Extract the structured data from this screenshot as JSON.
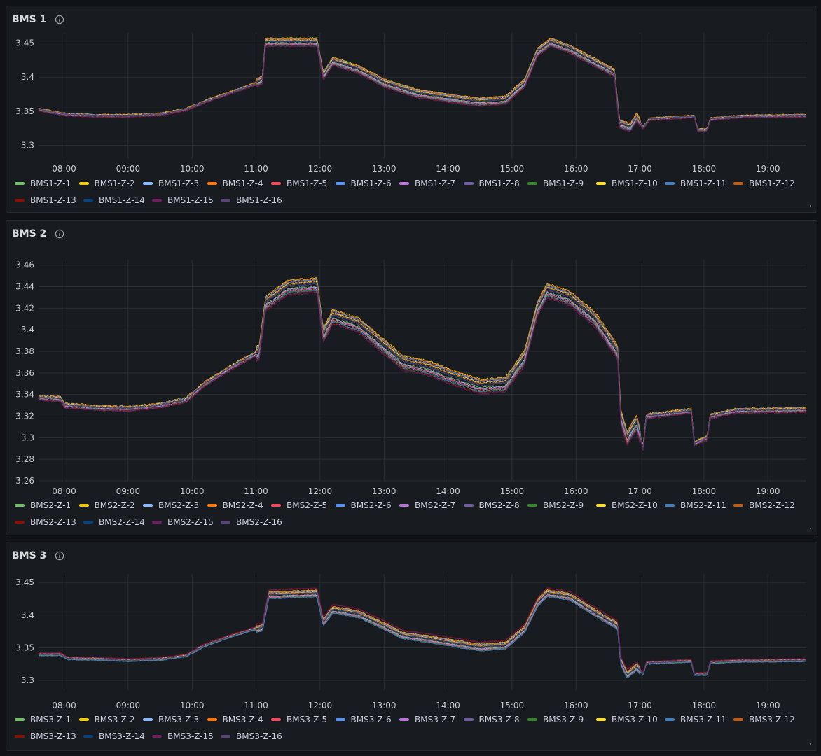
{
  "panels": [
    {
      "title": "BMS 1",
      "chart_data": {
        "type": "line",
        "x_ticks": [
          "08:00",
          "09:00",
          "10:00",
          "11:00",
          "12:00",
          "13:00",
          "14:00",
          "15:00",
          "16:00",
          "17:00",
          "18:00",
          "19:00"
        ],
        "y_ticks": [
          "3.3",
          "3.35",
          "3.4",
          "3.45"
        ],
        "ylim": [
          3.28,
          3.465
        ],
        "xlim_hours": [
          7.6,
          19.6
        ],
        "grid": true,
        "legend": "bottom",
        "base_curve": [
          [
            7.6,
            3.352
          ],
          [
            8.0,
            3.345
          ],
          [
            8.5,
            3.343
          ],
          [
            9.0,
            3.343
          ],
          [
            9.5,
            3.345
          ],
          [
            9.9,
            3.352
          ],
          [
            10.3,
            3.367
          ],
          [
            10.7,
            3.38
          ],
          [
            11.0,
            3.39
          ],
          [
            11.1,
            3.395
          ],
          [
            11.15,
            3.45
          ],
          [
            11.95,
            3.45
          ],
          [
            12.05,
            3.4
          ],
          [
            12.2,
            3.422
          ],
          [
            12.6,
            3.41
          ],
          [
            13.0,
            3.39
          ],
          [
            13.5,
            3.375
          ],
          [
            14.0,
            3.368
          ],
          [
            14.5,
            3.362
          ],
          [
            14.9,
            3.365
          ],
          [
            15.2,
            3.39
          ],
          [
            15.4,
            3.435
          ],
          [
            15.6,
            3.45
          ],
          [
            15.9,
            3.44
          ],
          [
            16.3,
            3.42
          ],
          [
            16.6,
            3.405
          ],
          [
            16.68,
            3.33
          ],
          [
            16.85,
            3.325
          ],
          [
            16.95,
            3.34
          ],
          [
            17.05,
            3.325
          ],
          [
            17.15,
            3.338
          ],
          [
            17.85,
            3.342
          ],
          [
            17.9,
            3.322
          ],
          [
            18.05,
            3.322
          ],
          [
            18.1,
            3.338
          ],
          [
            18.6,
            3.342
          ],
          [
            19.6,
            3.343
          ]
        ],
        "series": [
          {
            "name": "BMS1-Z-1",
            "color": "#73bf69"
          },
          {
            "name": "BMS1-Z-2",
            "color": "#f2cc0c"
          },
          {
            "name": "BMS1-Z-3",
            "color": "#8ab8ff"
          },
          {
            "name": "BMS1-Z-4",
            "color": "#ff780a"
          },
          {
            "name": "BMS1-Z-5",
            "color": "#f2495c"
          },
          {
            "name": "BMS1-Z-6",
            "color": "#5794f2"
          },
          {
            "name": "BMS1-Z-7",
            "color": "#b877d9"
          },
          {
            "name": "BMS1-Z-8",
            "color": "#705da0"
          },
          {
            "name": "BMS1-Z-9",
            "color": "#37872d"
          },
          {
            "name": "BMS1-Z-10",
            "color": "#fade2a"
          },
          {
            "name": "BMS1-Z-11",
            "color": "#447ebc"
          },
          {
            "name": "BMS1-Z-12",
            "color": "#c15c17"
          },
          {
            "name": "BMS1-Z-13",
            "color": "#890f02"
          },
          {
            "name": "BMS1-Z-14",
            "color": "#0a437c"
          },
          {
            "name": "BMS1-Z-15",
            "color": "#6d1f62"
          },
          {
            "name": "BMS1-Z-16",
            "color": "#584477"
          }
        ]
      }
    },
    {
      "title": "BMS 2",
      "chart_data": {
        "type": "line",
        "x_ticks": [
          "08:00",
          "09:00",
          "10:00",
          "11:00",
          "12:00",
          "13:00",
          "14:00",
          "15:00",
          "16:00",
          "17:00",
          "18:00",
          "19:00"
        ],
        "y_ticks": [
          "3.26",
          "3.28",
          "3.3",
          "3.32",
          "3.34",
          "3.36",
          "3.38",
          "3.4",
          "3.42",
          "3.44",
          "3.46"
        ],
        "ylim": [
          3.26,
          3.465
        ],
        "xlim_hours": [
          7.6,
          19.6
        ],
        "grid": true,
        "legend": "bottom",
        "base_curve": [
          [
            7.6,
            3.337
          ],
          [
            7.95,
            3.336
          ],
          [
            8.0,
            3.33
          ],
          [
            8.5,
            3.328
          ],
          [
            9.0,
            3.327
          ],
          [
            9.5,
            3.33
          ],
          [
            9.9,
            3.335
          ],
          [
            10.2,
            3.35
          ],
          [
            10.6,
            3.365
          ],
          [
            11.0,
            3.378
          ],
          [
            11.05,
            3.38
          ],
          [
            11.15,
            3.425
          ],
          [
            11.5,
            3.44
          ],
          [
            11.95,
            3.442
          ],
          [
            12.05,
            3.395
          ],
          [
            12.2,
            3.413
          ],
          [
            12.6,
            3.405
          ],
          [
            13.0,
            3.385
          ],
          [
            13.3,
            3.37
          ],
          [
            13.7,
            3.365
          ],
          [
            14.0,
            3.358
          ],
          [
            14.5,
            3.348
          ],
          [
            14.9,
            3.35
          ],
          [
            15.2,
            3.375
          ],
          [
            15.4,
            3.42
          ],
          [
            15.55,
            3.437
          ],
          [
            15.9,
            3.43
          ],
          [
            16.3,
            3.41
          ],
          [
            16.65,
            3.38
          ],
          [
            16.7,
            3.32
          ],
          [
            16.8,
            3.3
          ],
          [
            16.95,
            3.315
          ],
          [
            17.05,
            3.29
          ],
          [
            17.1,
            3.32
          ],
          [
            17.8,
            3.325
          ],
          [
            17.85,
            3.295
          ],
          [
            18.05,
            3.3
          ],
          [
            18.1,
            3.32
          ],
          [
            18.5,
            3.325
          ],
          [
            19.6,
            3.326
          ]
        ],
        "series": [
          {
            "name": "BMS2-Z-1",
            "color": "#73bf69"
          },
          {
            "name": "BMS2-Z-2",
            "color": "#f2cc0c"
          },
          {
            "name": "BMS2-Z-3",
            "color": "#8ab8ff"
          },
          {
            "name": "BMS2-Z-4",
            "color": "#ff780a"
          },
          {
            "name": "BMS2-Z-5",
            "color": "#f2495c"
          },
          {
            "name": "BMS2-Z-6",
            "color": "#5794f2"
          },
          {
            "name": "BMS2-Z-7",
            "color": "#b877d9"
          },
          {
            "name": "BMS2-Z-8",
            "color": "#705da0"
          },
          {
            "name": "BMS2-Z-9",
            "color": "#37872d"
          },
          {
            "name": "BMS2-Z-10",
            "color": "#fade2a"
          },
          {
            "name": "BMS2-Z-11",
            "color": "#447ebc"
          },
          {
            "name": "BMS2-Z-12",
            "color": "#c15c17"
          },
          {
            "name": "BMS2-Z-13",
            "color": "#890f02"
          },
          {
            "name": "BMS2-Z-14",
            "color": "#0a437c"
          },
          {
            "name": "BMS2-Z-15",
            "color": "#6d1f62"
          },
          {
            "name": "BMS2-Z-16",
            "color": "#584477"
          }
        ]
      }
    },
    {
      "title": "BMS 3",
      "chart_data": {
        "type": "line",
        "x_ticks": [
          "08:00",
          "09:00",
          "10:00",
          "11:00",
          "12:00",
          "13:00",
          "14:00",
          "15:00",
          "16:00",
          "17:00",
          "18:00",
          "19:00"
        ],
        "y_ticks": [
          "3.3",
          "3.35",
          "3.4",
          "3.45"
        ],
        "ylim": [
          3.285,
          3.463
        ],
        "xlim_hours": [
          7.6,
          19.6
        ],
        "grid": true,
        "legend": "bottom",
        "base_curve": [
          [
            7.6,
            3.34
          ],
          [
            7.95,
            3.34
          ],
          [
            8.05,
            3.334
          ],
          [
            8.5,
            3.333
          ],
          [
            9.0,
            3.331
          ],
          [
            9.5,
            3.333
          ],
          [
            9.9,
            3.338
          ],
          [
            10.2,
            3.354
          ],
          [
            10.6,
            3.368
          ],
          [
            11.0,
            3.38
          ],
          [
            11.1,
            3.382
          ],
          [
            11.2,
            3.432
          ],
          [
            11.95,
            3.435
          ],
          [
            12.05,
            3.39
          ],
          [
            12.2,
            3.41
          ],
          [
            12.6,
            3.403
          ],
          [
            13.0,
            3.385
          ],
          [
            13.3,
            3.37
          ],
          [
            13.7,
            3.365
          ],
          [
            14.0,
            3.36
          ],
          [
            14.5,
            3.352
          ],
          [
            14.9,
            3.355
          ],
          [
            15.2,
            3.38
          ],
          [
            15.4,
            3.42
          ],
          [
            15.55,
            3.435
          ],
          [
            15.9,
            3.43
          ],
          [
            16.3,
            3.405
          ],
          [
            16.65,
            3.385
          ],
          [
            16.7,
            3.33
          ],
          [
            16.8,
            3.31
          ],
          [
            16.95,
            3.322
          ],
          [
            17.05,
            3.31
          ],
          [
            17.1,
            3.327
          ],
          [
            17.8,
            3.33
          ],
          [
            17.85,
            3.31
          ],
          [
            18.05,
            3.31
          ],
          [
            18.1,
            3.328
          ],
          [
            18.5,
            3.33
          ],
          [
            19.6,
            3.331
          ]
        ],
        "series": [
          {
            "name": "BMS3-Z-1",
            "color": "#73bf69"
          },
          {
            "name": "BMS3-Z-2",
            "color": "#f2cc0c"
          },
          {
            "name": "BMS3-Z-3",
            "color": "#8ab8ff"
          },
          {
            "name": "BMS3-Z-4",
            "color": "#ff780a"
          },
          {
            "name": "BMS3-Z-5",
            "color": "#f2495c"
          },
          {
            "name": "BMS3-Z-6",
            "color": "#5794f2"
          },
          {
            "name": "BMS3-Z-7",
            "color": "#b877d9"
          },
          {
            "name": "BMS3-Z-8",
            "color": "#705da0"
          },
          {
            "name": "BMS3-Z-9",
            "color": "#37872d"
          },
          {
            "name": "BMS3-Z-10",
            "color": "#fade2a"
          },
          {
            "name": "BMS3-Z-11",
            "color": "#447ebc"
          },
          {
            "name": "BMS3-Z-12",
            "color": "#c15c17"
          },
          {
            "name": "BMS3-Z-13",
            "color": "#890f02"
          },
          {
            "name": "BMS3-Z-14",
            "color": "#0a437c"
          },
          {
            "name": "BMS3-Z-15",
            "color": "#6d1f62"
          },
          {
            "name": "BMS3-Z-16",
            "color": "#584477"
          }
        ]
      }
    }
  ]
}
